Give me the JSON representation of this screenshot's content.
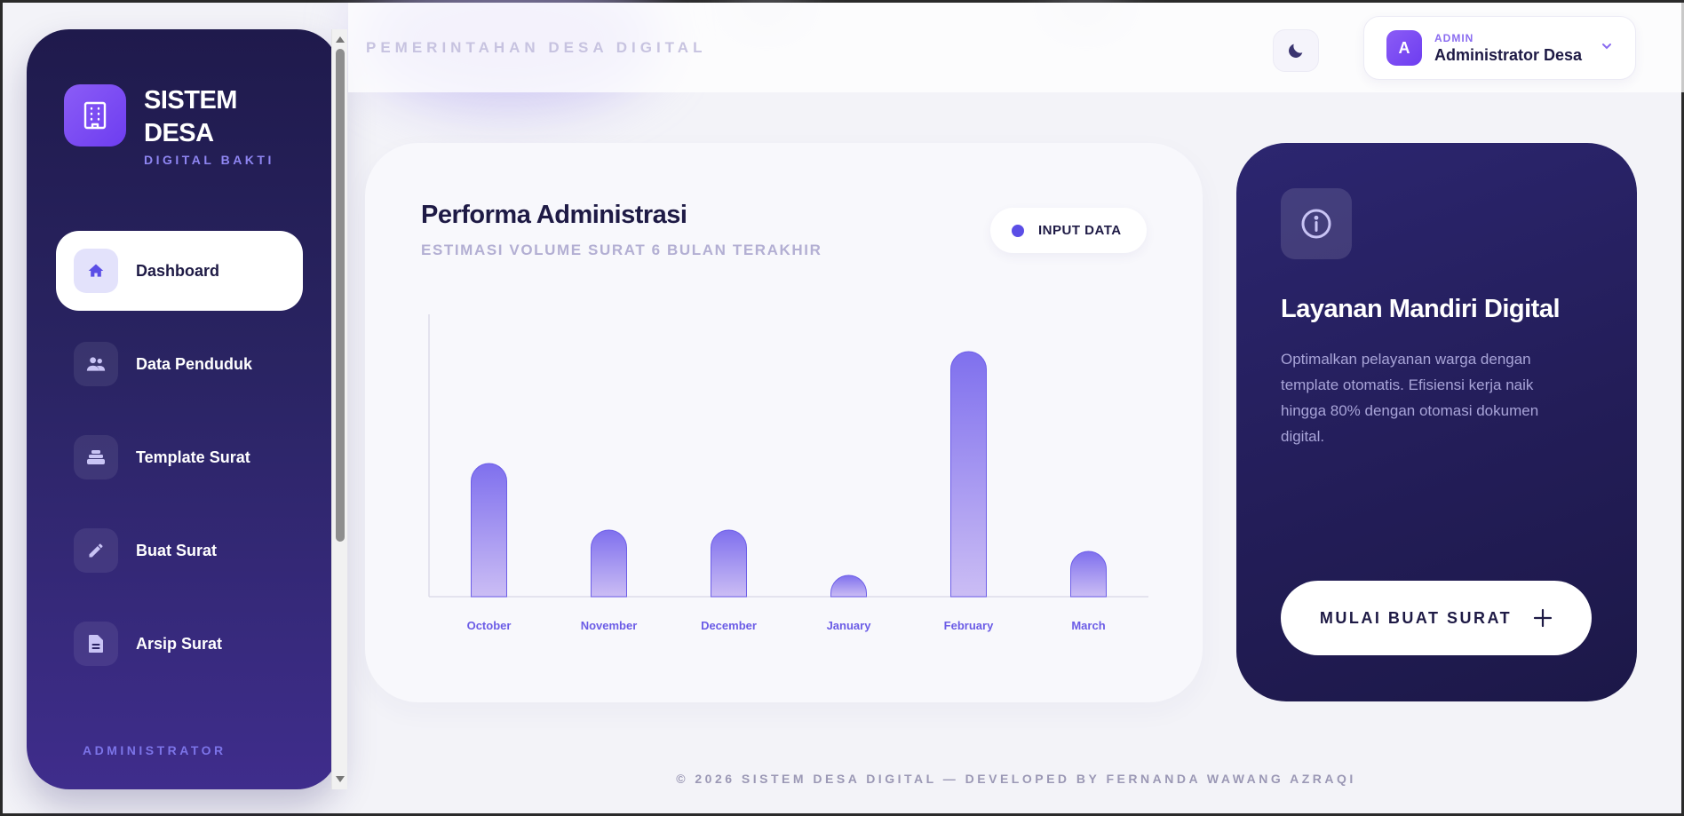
{
  "brand": {
    "title": "SISTEM DESA",
    "subtitle": "DIGITAL BAKTI"
  },
  "sidebar": {
    "items": [
      {
        "label": "Dashboard",
        "icon": "home-icon",
        "active": true
      },
      {
        "label": "Data Penduduk",
        "icon": "users-icon",
        "active": false
      },
      {
        "label": "Template Surat",
        "icon": "layers-icon",
        "active": false
      },
      {
        "label": "Buat Surat",
        "icon": "pencil-icon",
        "active": false
      },
      {
        "label": "Arsip Surat",
        "icon": "document-icon",
        "active": false
      }
    ],
    "footer": "ADMINISTRATOR"
  },
  "header": {
    "title": "PEMERINTAHAN DESA DIGITAL",
    "theme_icon": "moon-icon",
    "user": {
      "initial": "A",
      "role": "ADMIN",
      "name": "Administrator Desa"
    }
  },
  "chart_card": {
    "title": "Performa Administrasi",
    "subtitle": "ESTIMASI VOLUME SURAT 6 BULAN TERAKHIR",
    "legend": "INPUT DATA"
  },
  "chart_data": {
    "type": "bar",
    "categories": [
      "October",
      "November",
      "December",
      "January",
      "February",
      "March"
    ],
    "values": [
      50,
      25,
      25,
      8,
      92,
      17
    ],
    "ylim": [
      0,
      100
    ],
    "grid": false,
    "colors": {
      "bar_top": "#7f70ee",
      "bar_bottom": "#cbbdf4",
      "label": "#6b5ce6"
    }
  },
  "info_card": {
    "icon": "info-icon",
    "title": "Layanan Mandiri Digital",
    "description": "Optimalkan pelayanan warga dengan template otomatis. Efisiensi kerja naik hingga 80% dengan otomasi dokumen digital.",
    "cta_label": "MULAI BUAT SURAT",
    "cta_icon": "plus-icon"
  },
  "footer": "© 2026 SISTEM DESA DIGITAL — DEVELOPED BY FERNANDA WAWANG AZRAQI"
}
